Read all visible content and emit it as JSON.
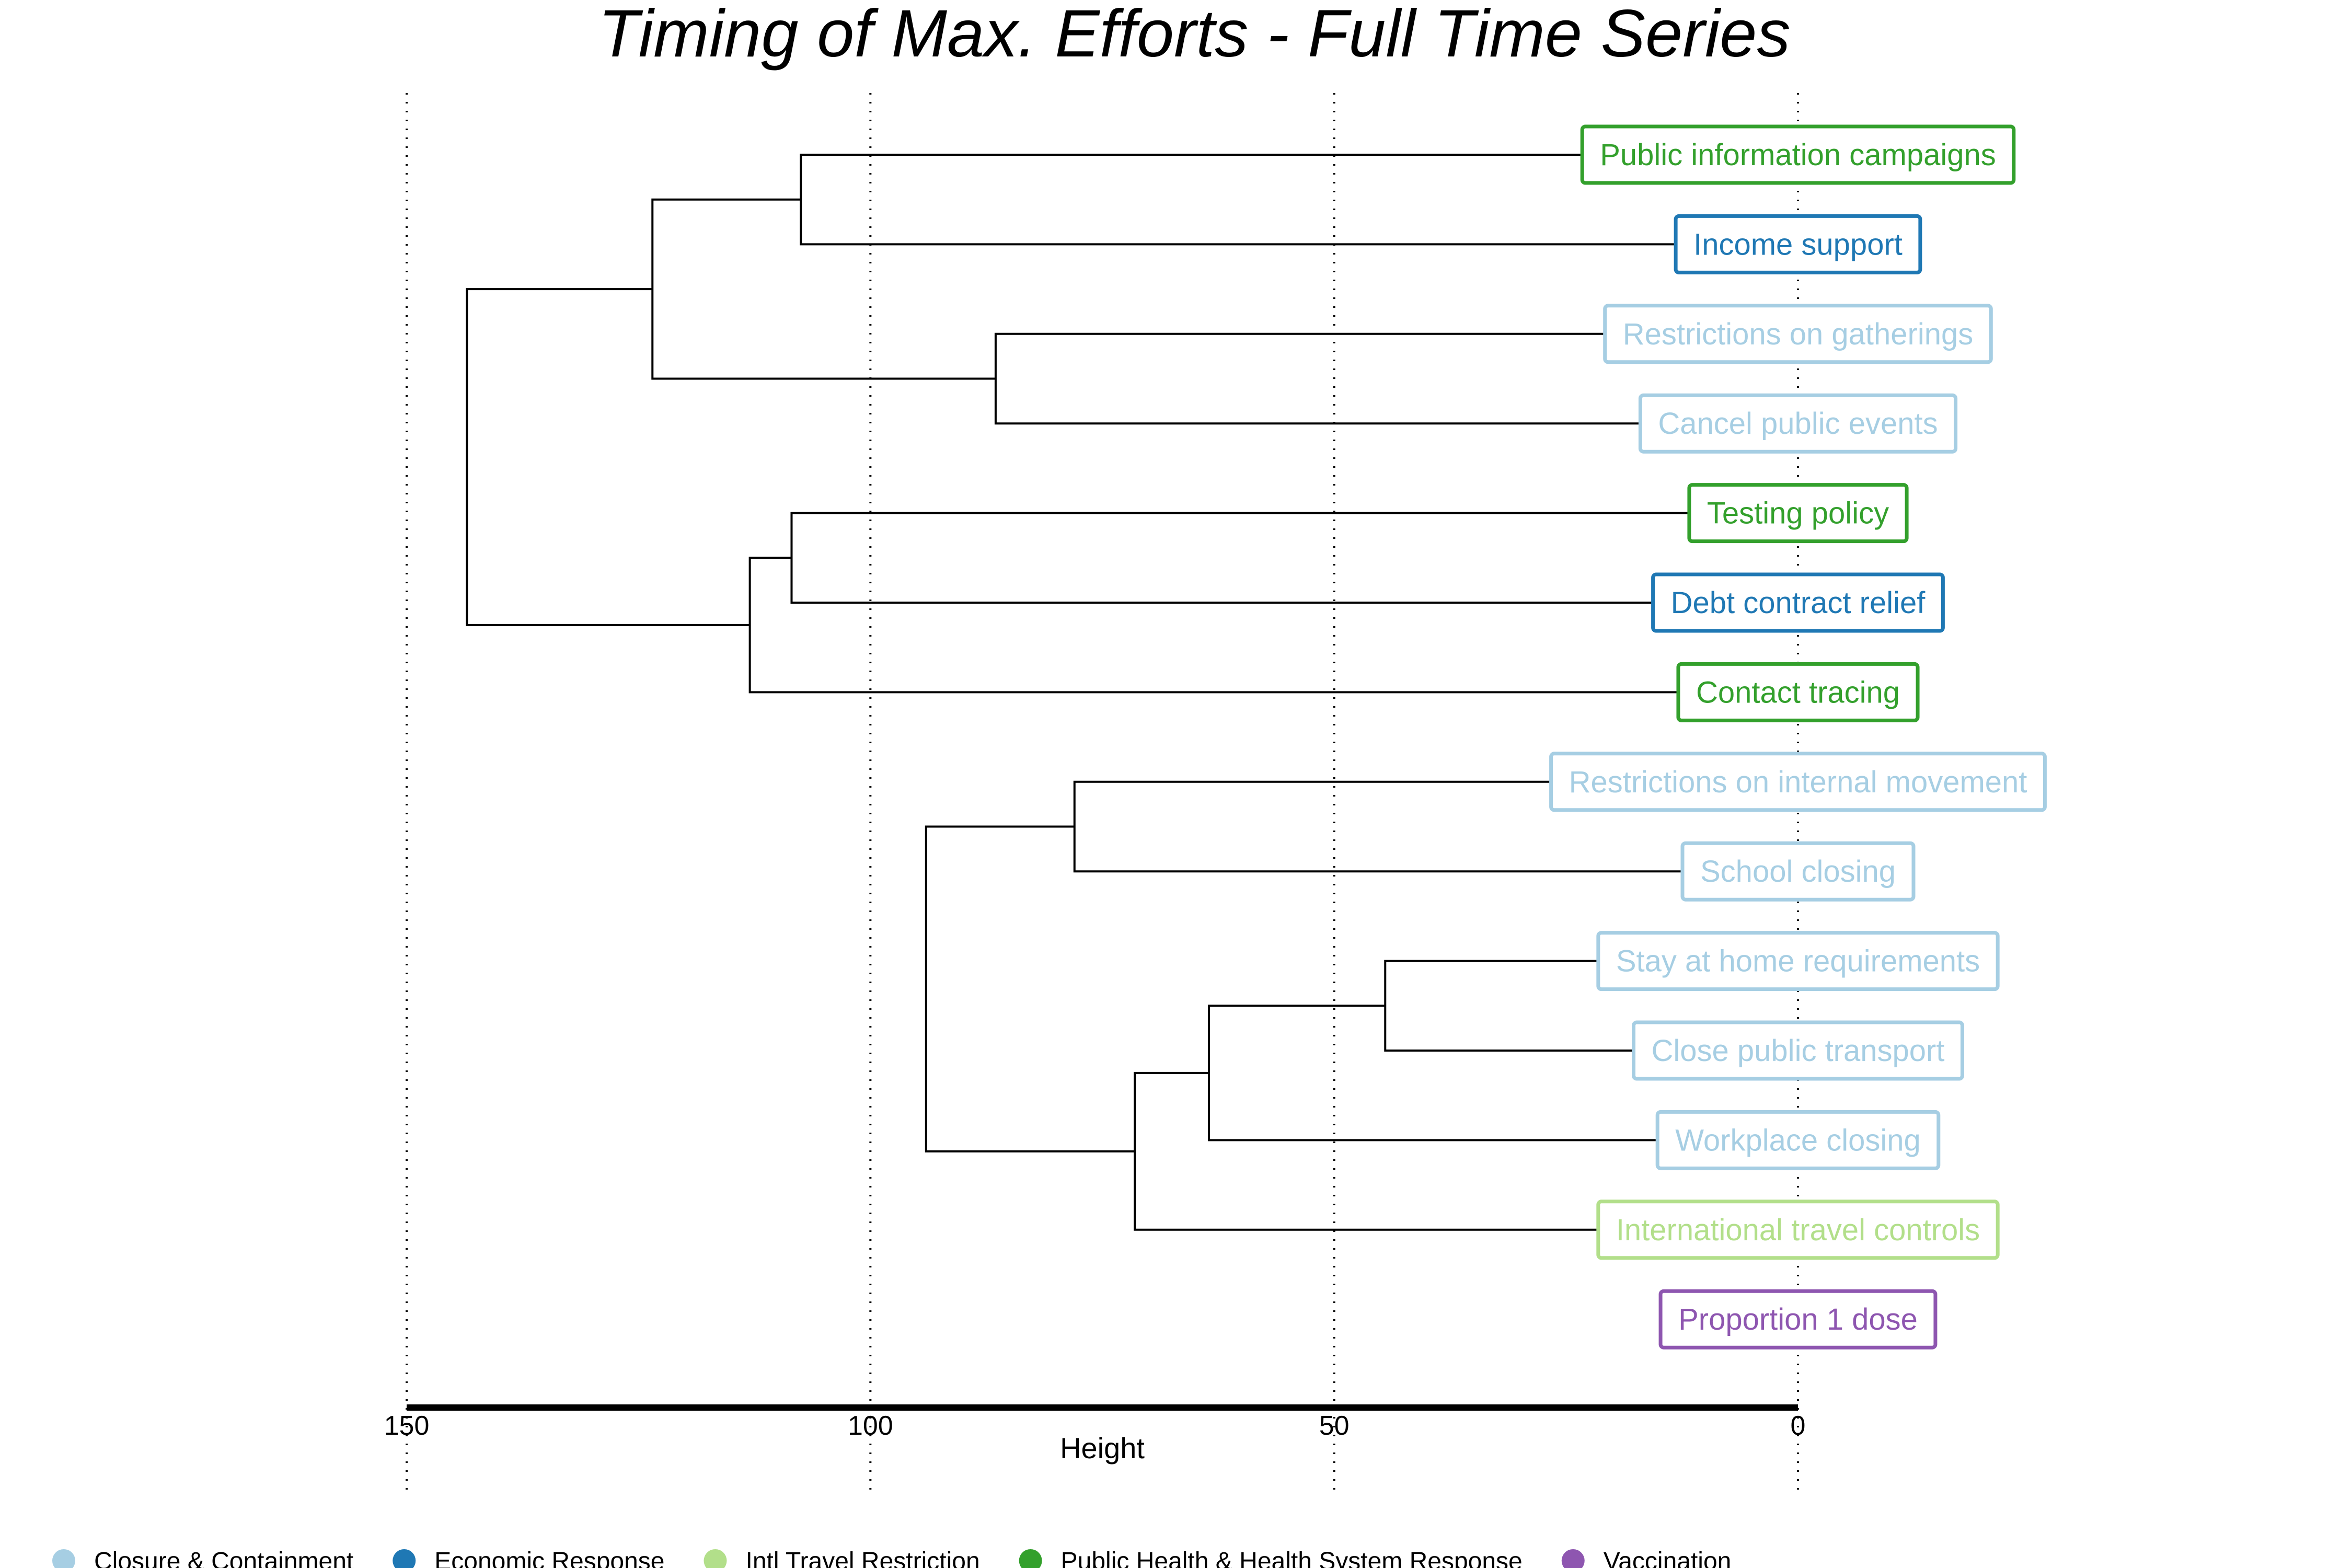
{
  "chart_data": {
    "type": "dendrogram",
    "title": "Timing of Max. Efforts - Full Time Series",
    "xlabel": "Height",
    "xlim": [
      150,
      0
    ],
    "xticks": [
      150,
      100,
      50,
      0
    ],
    "grid": "vertical-dotted",
    "legend_placement": "bottom",
    "colors": {
      "Closure & Containment": "#a6cee3",
      "Economic Response": "#1f78b4",
      "Intl Travel Restriction": "#b2df8a",
      "Public Health & Health System Response": "#33a02c",
      "Vaccination": "#8e56b0"
    },
    "legend": [
      "Closure & Containment",
      "Economic Response",
      "Intl Travel Restriction",
      "Public Health & Health System Response",
      "Vaccination"
    ],
    "leaves": [
      {
        "label": "Public information campaigns",
        "category": "Public Health & Health System Response"
      },
      {
        "label": "Income support",
        "category": "Economic Response"
      },
      {
        "label": "Restrictions on gatherings",
        "category": "Closure & Containment"
      },
      {
        "label": "Cancel public events",
        "category": "Closure & Containment"
      },
      {
        "label": "Testing policy",
        "category": "Public Health & Health System Response"
      },
      {
        "label": "Debt contract relief",
        "category": "Economic Response"
      },
      {
        "label": "Contact tracing",
        "category": "Public Health & Health System Response"
      },
      {
        "label": "Restrictions on internal movement",
        "category": "Closure & Containment"
      },
      {
        "label": "School closing",
        "category": "Closure & Containment"
      },
      {
        "label": "Stay at home requirements",
        "category": "Closure & Containment"
      },
      {
        "label": "Close public transport",
        "category": "Closure & Containment"
      },
      {
        "label": "Workplace closing",
        "category": "Closure & Containment"
      },
      {
        "label": "International travel controls",
        "category": "Intl Travel Restriction"
      },
      {
        "label": "Proportion 1 dose",
        "category": "Vaccination"
      }
    ],
    "merges": [
      {
        "a": "L0",
        "b": "L1",
        "height": 107.5
      },
      {
        "a": "L2",
        "b": "L3",
        "height": 86.5
      },
      {
        "a": "M0",
        "b": "M1",
        "height": 123.5
      },
      {
        "a": "L4",
        "b": "L5",
        "height": 108.5
      },
      {
        "a": "M3",
        "b": "L6",
        "height": 113.0
      },
      {
        "a": "M2",
        "b": "M4",
        "height": 143.5
      },
      {
        "a": "L7",
        "b": "L8",
        "height": 78.0
      },
      {
        "a": "L9",
        "b": "L10",
        "height": 44.5
      },
      {
        "a": "M7",
        "b": "L11",
        "height": 63.5
      },
      {
        "a": "M8",
        "b": "L12",
        "height": 71.5
      },
      {
        "a": "M6",
        "b": "M9",
        "height": 94.0
      }
    ]
  }
}
